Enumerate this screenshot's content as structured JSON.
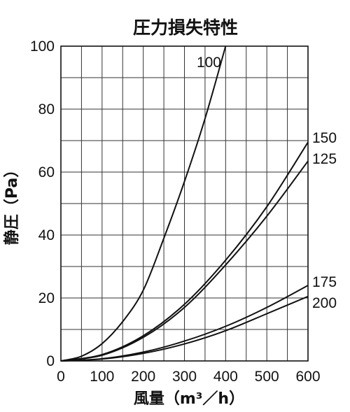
{
  "chart_data": {
    "type": "line",
    "title": "圧力損失特性",
    "xlabel": "風量（m³／h）",
    "ylabel": "静圧（Pa）",
    "xlim": [
      0,
      600
    ],
    "ylim": [
      0,
      100
    ],
    "xticks": [
      0,
      100,
      200,
      300,
      400,
      500,
      600
    ],
    "yticks": [
      0,
      20,
      40,
      60,
      80,
      100
    ],
    "grid": true,
    "series": [
      {
        "name": "100",
        "x": [
          0,
          50,
          100,
          150,
          200,
          250,
          300,
          350,
          400
        ],
        "y": [
          0,
          1.5,
          5.5,
          12.5,
          22.5,
          39,
          57,
          77,
          100
        ]
      },
      {
        "name": "150",
        "x": [
          0,
          100,
          200,
          300,
          400,
          500,
          600
        ],
        "y": [
          0,
          2,
          8,
          18,
          32,
          49,
          69.5
        ]
      },
      {
        "name": "125",
        "x": [
          0,
          100,
          200,
          300,
          400,
          500,
          600
        ],
        "y": [
          0,
          1.8,
          7.5,
          17,
          30.5,
          46,
          63.5
        ]
      },
      {
        "name": "175",
        "x": [
          0,
          100,
          200,
          300,
          400,
          500,
          600
        ],
        "y": [
          0,
          0.7,
          2.8,
          6.3,
          11,
          17,
          24
        ]
      },
      {
        "name": "200",
        "x": [
          0,
          100,
          200,
          300,
          400,
          500,
          600
        ],
        "y": [
          0,
          0.6,
          2.4,
          5.4,
          9.6,
          15,
          20.5
        ]
      }
    ]
  }
}
